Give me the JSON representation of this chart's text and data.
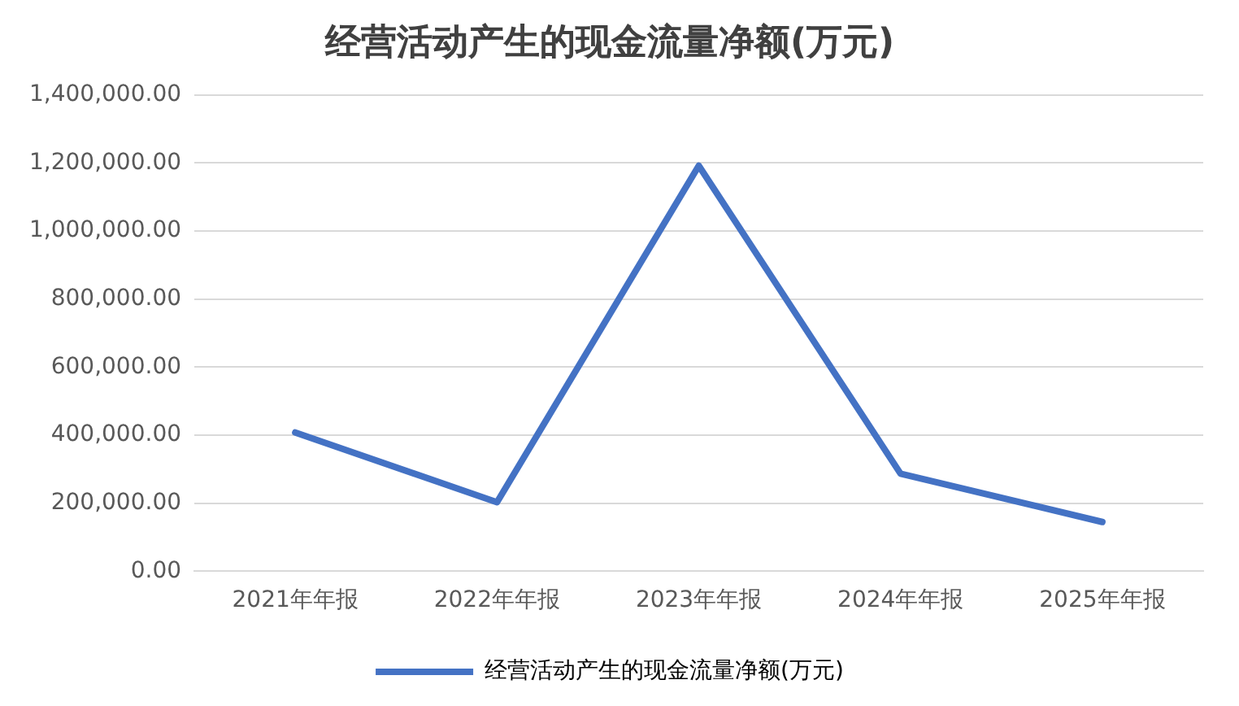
{
  "chart_data": {
    "type": "line",
    "title": "经营活动产生的现金流量净额(万元)",
    "categories": [
      "2021年年报",
      "2022年年报",
      "2023年年报",
      "2024年年报",
      "2025年年报"
    ],
    "series": [
      {
        "name": "经营活动产生的现金流量净额(万元)",
        "color": "#4472c4",
        "values": [
          408000,
          203000,
          1192000,
          287000,
          145000
        ]
      }
    ],
    "ylim": [
      0,
      1400000
    ],
    "yticks": [
      {
        "value": 0,
        "label": "0.00"
      },
      {
        "value": 200000,
        "label": "200,000.00"
      },
      {
        "value": 400000,
        "label": "400,000.00"
      },
      {
        "value": 600000,
        "label": "600,000.00"
      },
      {
        "value": 800000,
        "label": "800,000.00"
      },
      {
        "value": 1000000,
        "label": "1,000,000.00"
      },
      {
        "value": 1200000,
        "label": "1,200,000.00"
      },
      {
        "value": 1400000,
        "label": "1,400,000.00"
      }
    ],
    "grid": "y",
    "legend": "bottom",
    "marker": "none",
    "line_style": "solid"
  }
}
